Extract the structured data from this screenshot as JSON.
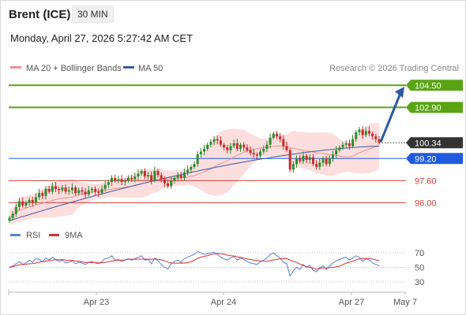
{
  "header": {
    "instrument": "Brent (ICE)",
    "timeframe": "30 MIN",
    "timestamp": "Monday, April 27, 2026 5:27:42 AM CET"
  },
  "copyright": "Research © 2026 Trading Central",
  "colors": {
    "resistance": "#5aa414",
    "pivot": "#1f5bdc",
    "support": "#d43f3a",
    "last_price_bg": "#333333",
    "bollinger_fill": "#fbd6d6",
    "ma20": "#f09090",
    "ma50": "#3a5aa8",
    "arrow": "#2a5aa0",
    "rsi": "#5a7fd8",
    "rsi_ma": "#d83030",
    "candle_up": "#2e8b2e",
    "candle_down": "#cc2a2a"
  },
  "chart_data": [
    {
      "type": "candlestick",
      "legend": [
        {
          "name": "MA 20 + Bollinger Bands",
          "color": "#f09090"
        },
        {
          "name": "MA 50",
          "color": "#3a5aa8"
        }
      ],
      "ylim": [
        94.6,
        105.2
      ],
      "x_ticks": [
        "Apr 23",
        "Apr 24",
        "Apr 27",
        "May 7"
      ],
      "last_price": "100.34",
      "levels": [
        {
          "label": "104.50",
          "value": 104.5,
          "kind": "resistance"
        },
        {
          "label": "102.90",
          "value": 102.9,
          "kind": "resistance"
        },
        {
          "label": "99.20",
          "value": 99.2,
          "kind": "pivot"
        },
        {
          "label": "97.60",
          "value": 97.6,
          "kind": "support"
        },
        {
          "label": "96.00",
          "value": 96.0,
          "kind": "support"
        }
      ],
      "candles_close": [
        94.9,
        95.2,
        95.7,
        96.1,
        95.8,
        96.0,
        96.2,
        96.0,
        96.4,
        96.7,
        96.5,
        97.0,
        96.8,
        97.2,
        97.0,
        96.9,
        97.1,
        96.8,
        96.9,
        97.1,
        96.7,
        96.9,
        96.8,
        96.6,
        96.9,
        97.0,
        96.8,
        96.7,
        97.0,
        97.3,
        97.5,
        97.8,
        97.6,
        97.7,
        97.5,
        97.6,
        97.8,
        97.7,
        97.9,
        98.1,
        98.3,
        97.9,
        98.0,
        97.6,
        98.3,
        98.0,
        97.7,
        97.4,
        97.2,
        97.6,
        97.8,
        98.0,
        97.8,
        98.2,
        98.4,
        98.6,
        98.8,
        99.5,
        99.7,
        99.9,
        100.2,
        100.4,
        100.6,
        100.5,
        100.2,
        100.0,
        99.8,
        100.1,
        100.3,
        99.9,
        100.2,
        100.0,
        99.8,
        99.6,
        99.5,
        99.4,
        99.7,
        99.9,
        100.2,
        100.7,
        101.0,
        100.8,
        100.6,
        100.1,
        99.8,
        98.4,
        98.8,
        99.2,
        99.0,
        99.4,
        99.1,
        99.3,
        98.8,
        98.6,
        98.9,
        99.2,
        98.8,
        99.2,
        99.5,
        99.8,
        100.0,
        100.2,
        100.3,
        100.1,
        100.6,
        101.1,
        101.3,
        100.9,
        101.2,
        101.0,
        100.8,
        100.6,
        100.34
      ],
      "ma50_start": 94.7,
      "ma50_end": 100.1,
      "forecast_arrow": {
        "from": 100.34,
        "to": 104.5
      }
    },
    {
      "type": "line",
      "legend": [
        {
          "name": "RSI",
          "color": "#5a7fd8"
        },
        {
          "name": "9MA",
          "color": "#d83030"
        }
      ],
      "ylim": [
        20,
        80
      ],
      "y_ticks": [
        "70",
        "50",
        "30"
      ],
      "rsi": [
        50,
        52,
        55,
        58,
        54,
        56,
        60,
        57,
        62,
        61,
        58,
        63,
        60,
        64,
        61,
        58,
        60,
        56,
        57,
        59,
        55,
        57,
        56,
        54,
        57,
        58,
        56,
        55,
        58,
        62,
        63,
        66,
        60,
        61,
        58,
        60,
        62,
        60,
        62,
        64,
        66,
        60,
        61,
        55,
        63,
        59,
        54,
        50,
        48,
        55,
        58,
        60,
        57,
        62,
        64,
        66,
        68,
        72,
        70,
        68,
        69,
        70,
        71,
        68,
        64,
        62,
        60,
        63,
        65,
        60,
        63,
        61,
        58,
        56,
        55,
        54,
        58,
        60,
        63,
        68,
        70,
        66,
        63,
        57,
        55,
        38,
        45,
        50,
        47,
        54,
        50,
        53,
        46,
        44,
        49,
        52,
        47,
        52,
        56,
        59,
        61,
        63,
        64,
        60,
        63,
        66,
        64,
        58,
        62,
        60,
        56,
        54,
        52
      ]
    }
  ]
}
